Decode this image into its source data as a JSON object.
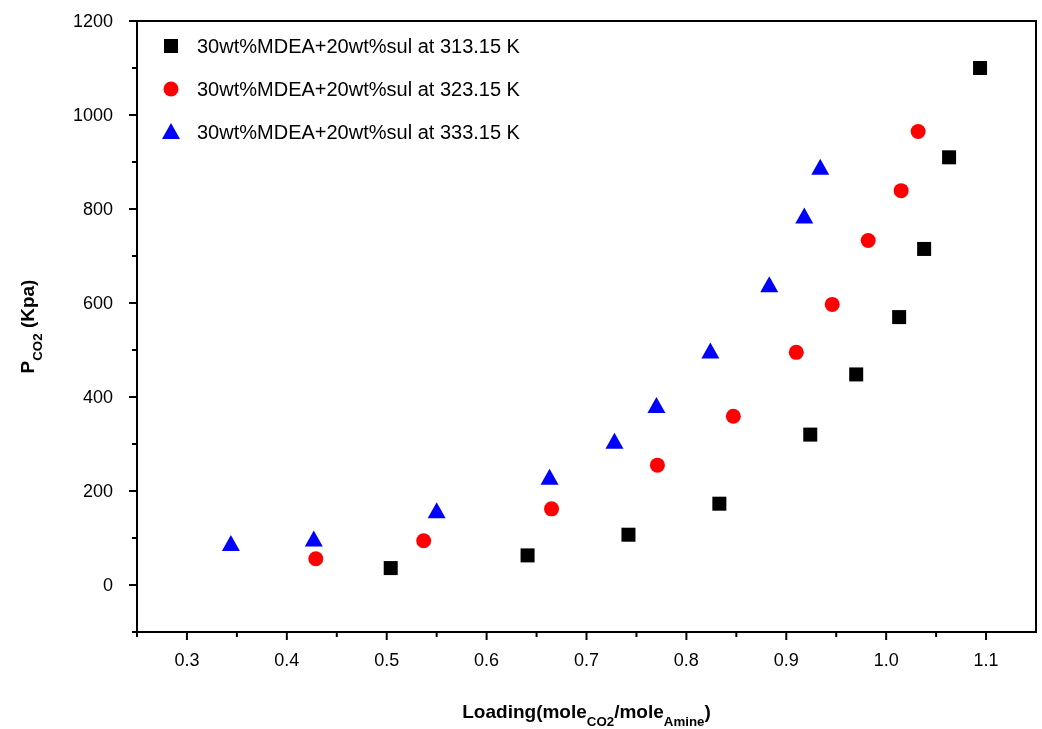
{
  "chart_data": {
    "type": "scatter",
    "xlabel": "Loading(mole$_{CO2}$/mole$_{Amine}$)",
    "ylabel": "P$_{CO2}$ (Kpa)",
    "xlim": [
      0.25,
      1.15
    ],
    "ylim": [
      -100,
      1200
    ],
    "xticks": [
      {
        "value": 0.25,
        "label": null
      },
      0.3,
      {
        "value": 0.35,
        "label": null
      },
      0.4,
      {
        "value": 0.45,
        "label": null
      },
      0.5,
      {
        "value": 0.55,
        "label": null
      },
      0.6,
      {
        "value": 0.65,
        "label": null
      },
      0.7,
      {
        "value": 0.75,
        "label": null
      },
      0.8,
      {
        "value": 0.85,
        "label": null
      },
      0.9,
      {
        "value": 0.95,
        "label": null
      },
      {
        "value": 1.0,
        "label": "1.0"
      },
      {
        "value": 1.05,
        "label": null
      },
      1.1
    ],
    "yticks": [
      {
        "value": -100,
        "label": null
      },
      0,
      {
        "value": 100,
        "label": null
      },
      200,
      {
        "value": 300,
        "label": null
      },
      400,
      {
        "value": 500,
        "label": null
      },
      600,
      {
        "value": 700,
        "label": null
      },
      800,
      {
        "value": 900,
        "label": null
      },
      1000,
      {
        "value": 1100,
        "label": null
      },
      1200
    ],
    "grid": false,
    "legend": "top left",
    "series": [
      {
        "name": "30wt%MDEA+20wt%sul at 313.15 K",
        "color": "#000000",
        "marker": "square",
        "x": [
          0.504,
          0.641,
          0.742,
          0.833,
          0.924,
          0.97,
          1.013,
          1.038,
          1.063,
          1.094
        ],
        "values": [
          36,
          63,
          107,
          173,
          320,
          448,
          570,
          715,
          910,
          1100
        ]
      },
      {
        "name": "30wt%MDEA+20wt%sul at 323.15 K",
        "color": "#ff0000",
        "marker": "circle",
        "x": [
          0.429,
          0.537,
          0.665,
          0.771,
          0.847,
          0.91,
          0.946,
          0.982,
          1.015,
          1.032
        ],
        "values": [
          56,
          94,
          162,
          255,
          359,
          495,
          597,
          733,
          839,
          965
        ]
      },
      {
        "name": "30wt%MDEA+20wt%sul at 333.15 K",
        "color": "#0000ff",
        "marker": "triangle",
        "x": [
          0.344,
          0.427,
          0.55,
          0.663,
          0.728,
          0.77,
          0.824,
          0.883,
          0.918,
          0.934
        ],
        "values": [
          87,
          97,
          157,
          228,
          305,
          381,
          497,
          638,
          784,
          888
        ]
      }
    ]
  }
}
